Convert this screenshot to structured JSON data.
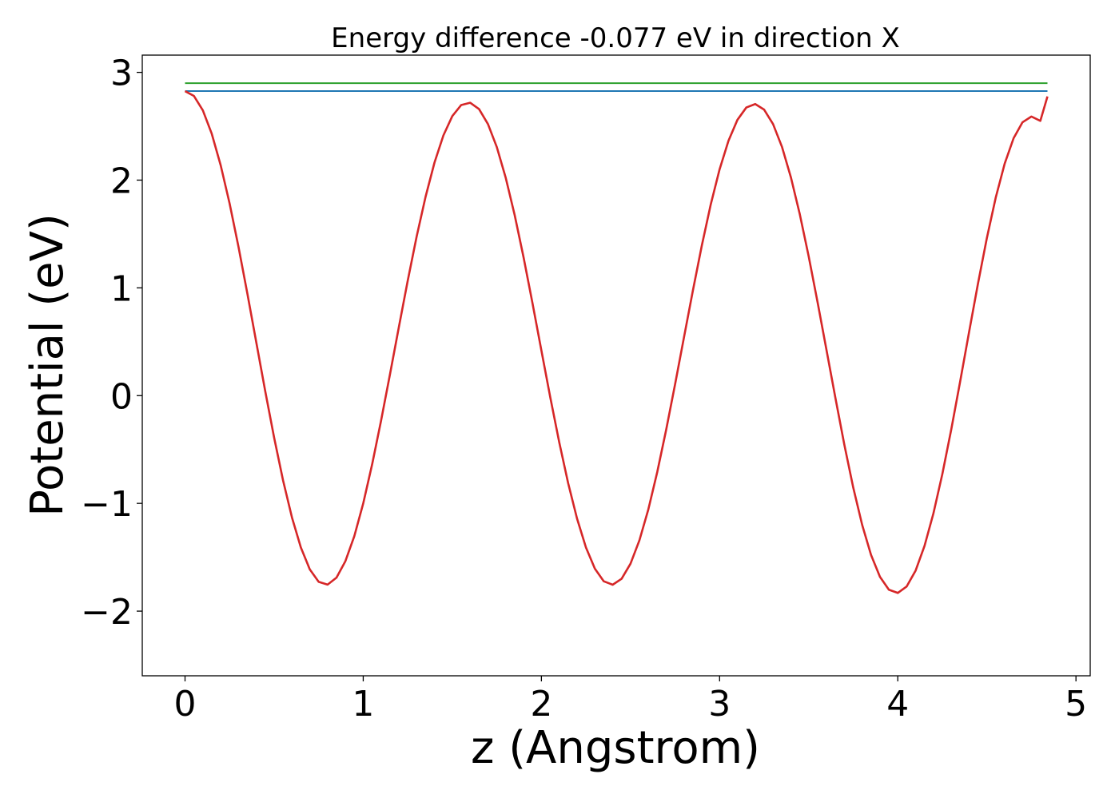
{
  "chart_data": {
    "type": "line",
    "title": "Energy difference -0.077 eV in direction X",
    "xlabel": "z (Angstrom)",
    "ylabel": "Potential (eV)",
    "xlim": [
      -0.24,
      5.08
    ],
    "ylim": [
      -2.6,
      3.16
    ],
    "xticks": [
      0,
      1,
      2,
      3,
      4,
      5
    ],
    "xtick_labels": [
      "0",
      "1",
      "2",
      "3",
      "4",
      "5"
    ],
    "yticks": [
      -2,
      -1,
      0,
      1,
      2,
      3
    ],
    "ytick_labels": [
      "−2",
      "−1",
      "0",
      "1",
      "2",
      "3"
    ],
    "grid": false,
    "legend": "none",
    "series": [
      {
        "color": "#2ca02c",
        "x": [
          0,
          4.84
        ],
        "y": [
          2.9,
          2.9
        ]
      },
      {
        "color": "#1f77b4",
        "x": [
          0,
          4.84
        ],
        "y": [
          2.826,
          2.826
        ]
      },
      {
        "color": "#d62728",
        "x": [
          0.0,
          0.05,
          0.1,
          0.15,
          0.2,
          0.25,
          0.3,
          0.35,
          0.4,
          0.45,
          0.5,
          0.55,
          0.6,
          0.65,
          0.7,
          0.75,
          0.8,
          0.85,
          0.9,
          0.95,
          1.0,
          1.05,
          1.1,
          1.15,
          1.2,
          1.25,
          1.3,
          1.35,
          1.4,
          1.45,
          1.5,
          1.55,
          1.6,
          1.65,
          1.7,
          1.75,
          1.8,
          1.85,
          1.9,
          1.95,
          2.0,
          2.05,
          2.1,
          2.15,
          2.2,
          2.25,
          2.3,
          2.35,
          2.4,
          2.45,
          2.5,
          2.55,
          2.6,
          2.65,
          2.7,
          2.75,
          2.8,
          2.85,
          2.9,
          2.95,
          3.0,
          3.05,
          3.1,
          3.15,
          3.2,
          3.25,
          3.3,
          3.35,
          3.4,
          3.45,
          3.5,
          3.55,
          3.6,
          3.65,
          3.7,
          3.75,
          3.8,
          3.85,
          3.9,
          3.95,
          4.0,
          4.05,
          4.1,
          4.15,
          4.2,
          4.25,
          4.3,
          4.35,
          4.4,
          4.45,
          4.5,
          4.55,
          4.6,
          4.65,
          4.7,
          4.75,
          4.8,
          4.84
        ],
        "y": [
          2.826,
          2.781,
          2.647,
          2.43,
          2.138,
          1.784,
          1.381,
          0.945,
          0.493,
          0.042,
          -0.39,
          -0.786,
          -1.13,
          -1.409,
          -1.612,
          -1.728,
          -1.754,
          -1.689,
          -1.536,
          -1.304,
          -1.0,
          -0.638,
          -0.233,
          0.197,
          0.636,
          1.069,
          1.478,
          1.846,
          2.163,
          2.415,
          2.594,
          2.697,
          2.718,
          2.659,
          2.52,
          2.305,
          2.02,
          1.675,
          1.282,
          0.857,
          0.418,
          -0.018,
          -0.433,
          -0.812,
          -1.141,
          -1.409,
          -1.606,
          -1.723,
          -1.755,
          -1.7,
          -1.56,
          -1.343,
          -1.056,
          -0.71,
          -0.318,
          0.104,
          0.54,
          0.974,
          1.391,
          1.772,
          2.1,
          2.366,
          2.559,
          2.674,
          2.706,
          2.654,
          2.52,
          2.309,
          2.027,
          1.684,
          1.292,
          0.866,
          0.423,
          -0.022,
          -0.455,
          -0.853,
          -1.199,
          -1.479,
          -1.682,
          -1.801,
          -1.831,
          -1.771,
          -1.624,
          -1.395,
          -1.093,
          -0.728,
          -0.315,
          0.131,
          0.589,
          1.039,
          1.463,
          1.84,
          2.153,
          2.389,
          2.537,
          2.59,
          2.55,
          2.776
        ]
      }
    ]
  }
}
